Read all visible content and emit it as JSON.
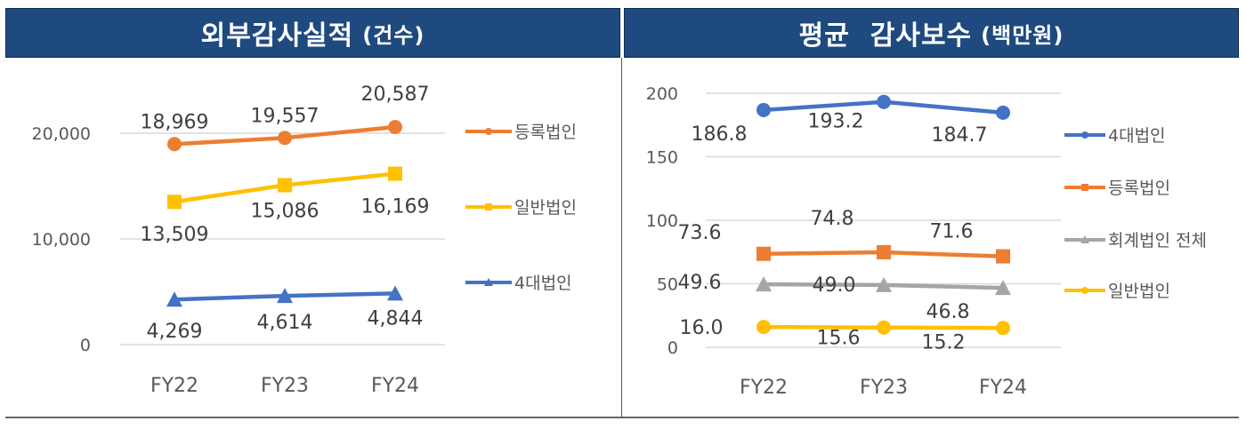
{
  "left_panel": {
    "title": "외부감사실적",
    "unit": "(건수)"
  },
  "right_panel": {
    "title": "평균  감사보수",
    "unit": "(백만원)"
  },
  "chart_data": [
    {
      "type": "line",
      "title": "외부감사실적 (건수)",
      "categories": [
        "FY22",
        "FY23",
        "FY24"
      ],
      "series": [
        {
          "name": "등록법인",
          "values": [
            18969,
            19557,
            20587
          ],
          "labels": [
            "18,969",
            "19,557",
            "20,587"
          ],
          "color": "#ed7d31",
          "marker": "circle"
        },
        {
          "name": "일반법인",
          "values": [
            13509,
            15086,
            16169
          ],
          "labels": [
            "13,509",
            "15,086",
            "16,169"
          ],
          "color": "#ffc000",
          "marker": "square"
        },
        {
          "name": "4대법인",
          "values": [
            4269,
            4614,
            4844
          ],
          "labels": [
            "4,269",
            "4,614",
            "4,844"
          ],
          "color": "#4472c4",
          "marker": "triangle"
        }
      ],
      "yticks": [
        "0",
        "10,000",
        "20,000"
      ],
      "ylim": [
        0,
        20000
      ],
      "xlabel": "",
      "ylabel": "",
      "grid": true,
      "legend_position": "right"
    },
    {
      "type": "line",
      "title": "평균 감사보수 (백만원)",
      "categories": [
        "FY22",
        "FY23",
        "FY24"
      ],
      "series": [
        {
          "name": "4대법인",
          "values": [
            186.8,
            193.2,
            184.7
          ],
          "labels": [
            "186.8",
            "193.2",
            "184.7"
          ],
          "color": "#4472c4",
          "marker": "circle"
        },
        {
          "name": "등록법인",
          "values": [
            73.6,
            74.8,
            71.6
          ],
          "labels": [
            "73.6",
            "74.8",
            "71.6"
          ],
          "color": "#ed7d31",
          "marker": "square"
        },
        {
          "name": "회계법인 전체",
          "values": [
            49.6,
            49.0,
            46.8
          ],
          "labels": [
            "49.6",
            "49.0",
            "46.8"
          ],
          "color": "#a5a5a5",
          "marker": "triangle"
        },
        {
          "name": "일반법인",
          "values": [
            16.0,
            15.6,
            15.2
          ],
          "labels": [
            "16.0",
            "15.6",
            "15.2"
          ],
          "color": "#ffc000",
          "marker": "circle"
        }
      ],
      "yticks": [
        "0",
        "50",
        "100",
        "150",
        "200"
      ],
      "ylim": [
        0,
        200
      ],
      "xlabel": "",
      "ylabel": "",
      "grid": true,
      "legend_position": "right"
    }
  ]
}
